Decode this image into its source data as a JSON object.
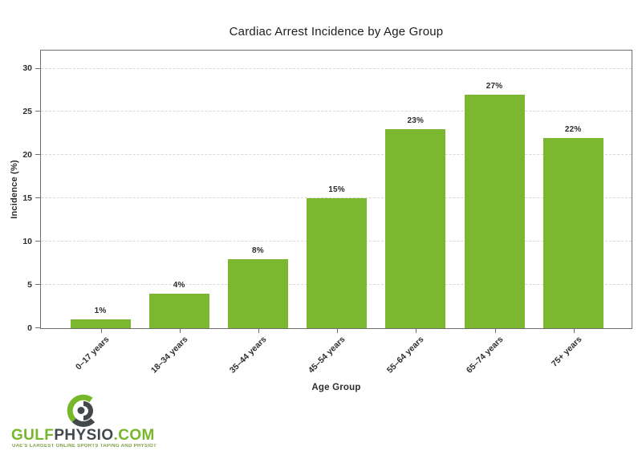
{
  "page": {
    "background": "#ffffff"
  },
  "chart_data": {
    "type": "bar",
    "title": "Cardiac Arrest Incidence by Age Group",
    "categories": [
      "0–17 years",
      "18–34 years",
      "35–44 years",
      "45–54 years",
      "55–64 years",
      "65–74 years",
      "75+ years"
    ],
    "values": [
      1,
      4,
      8,
      15,
      23,
      27,
      22
    ],
    "bar_labels": [
      "1%",
      "4%",
      "8%",
      "15%",
      "23%",
      "27%",
      "22%"
    ],
    "xlabel": "Age Group",
    "ylabel": "Incidence (%)",
    "ylim": [
      0,
      32
    ],
    "yticks": [
      0,
      5,
      10,
      15,
      20,
      25,
      30
    ],
    "grid": "horizontal-dashed",
    "legend_position": "none",
    "bar_color": "#7cb82f"
  },
  "branding": {
    "logo_text_gulf": "GULF",
    "logo_text_physio": "PHYSIO",
    "logo_text_com": ".COM",
    "tagline": "UAE'S LARGEST ONLINE SPORTS TAPING AND PHYSIOTHERAPY STORE",
    "brand_green": "#76b82a",
    "brand_dark": "#43484b"
  }
}
